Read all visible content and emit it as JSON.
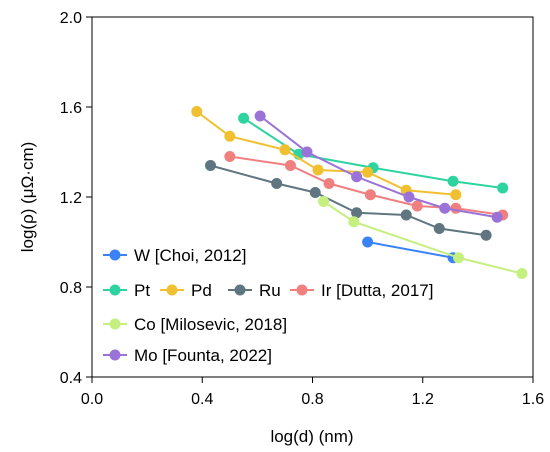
{
  "chart_data": {
    "type": "line",
    "xlabel": "log(d) (nm)",
    "ylabel": "log(ρ) (μΩ·cm)",
    "xlim": [
      0.0,
      1.6
    ],
    "ylim": [
      0.4,
      2.0
    ],
    "xticks": [
      "0.0",
      "0.4",
      "0.8",
      "1.2",
      "1.6"
    ],
    "yticks": [
      "0.4",
      "0.8",
      "1.2",
      "1.6",
      "2.0"
    ],
    "grid": false,
    "legend_position": "bottom-left",
    "series": [
      {
        "name": "W [Choi, 2012]",
        "color": "#3b82f6",
        "x": [
          1.0,
          1.31
        ],
        "y": [
          1.0,
          0.93
        ]
      },
      {
        "name": "Pt",
        "color": "#2dd4a0",
        "x": [
          0.55,
          0.75,
          1.02,
          1.31,
          1.49
        ],
        "y": [
          1.55,
          1.39,
          1.33,
          1.27,
          1.24
        ]
      },
      {
        "name": "Pd",
        "color": "#f0c030",
        "x": [
          0.38,
          0.5,
          0.7,
          0.82,
          1.0,
          1.14,
          1.32
        ],
        "y": [
          1.58,
          1.47,
          1.41,
          1.32,
          1.31,
          1.23,
          1.21
        ]
      },
      {
        "name": "Ru",
        "color": "#5f7580",
        "x": [
          0.43,
          0.67,
          0.81,
          0.96,
          1.14,
          1.26,
          1.43
        ],
        "y": [
          1.34,
          1.26,
          1.22,
          1.13,
          1.12,
          1.06,
          1.03
        ]
      },
      {
        "name": "Ir [Dutta, 2017]",
        "color": "#f08080",
        "x": [
          0.5,
          0.72,
          0.86,
          1.01,
          1.18,
          1.32,
          1.49
        ],
        "y": [
          1.38,
          1.34,
          1.26,
          1.21,
          1.16,
          1.15,
          1.12
        ]
      },
      {
        "name": "Co [Milosevic, 2018]",
        "color": "#c5ef7e",
        "x": [
          0.84,
          0.95,
          1.33,
          1.56
        ],
        "y": [
          1.18,
          1.09,
          0.93,
          0.86
        ]
      },
      {
        "name": "Mo [Founta, 2022]",
        "color": "#9a72d8",
        "x": [
          0.61,
          0.78,
          0.96,
          1.15,
          1.28,
          1.47
        ],
        "y": [
          1.56,
          1.4,
          1.29,
          1.2,
          1.15,
          1.11
        ]
      }
    ]
  }
}
